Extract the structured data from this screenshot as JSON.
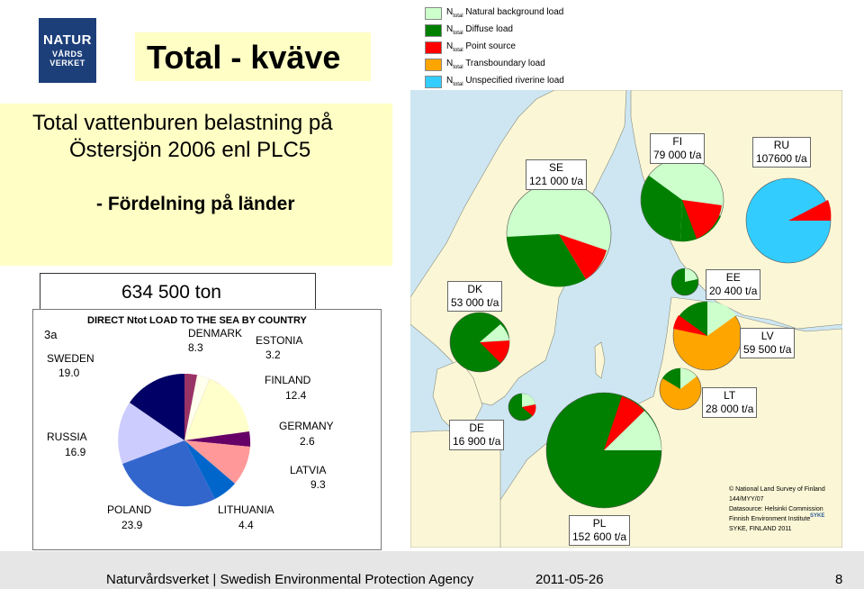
{
  "logo": {
    "line1": "NATUR",
    "line2": "VÅRDS",
    "line3": "VERKET"
  },
  "title": "Total - kväve",
  "legend": [
    {
      "prefix": "N",
      "sub": "total",
      "label": "Natural background load",
      "color": "#ccffcc"
    },
    {
      "prefix": "N",
      "sub": "total",
      "label": "Diffuse load",
      "color": "#008000"
    },
    {
      "prefix": "N",
      "sub": "total",
      "label": "Point source",
      "color": "#ff0000"
    },
    {
      "prefix": "N",
      "sub": "total",
      "label": "Transboundary load",
      "color": "#ffa500"
    },
    {
      "prefix": "N",
      "sub": "total",
      "label": "Unspecified riverine load",
      "color": "#33ccff"
    }
  ],
  "subtitle": {
    "line1": "Total vattenburen belastning på",
    "line2": "Östersjön 2006 enl PLC5",
    "line3": "- Fördelning på länder"
  },
  "total_value": "634 500 ton",
  "direct_chart": {
    "title": "DIRECT Ntot LOAD TO THE SEA BY COUNTRY",
    "panel_label": "3a",
    "slices": [
      {
        "country": "SWEDEN",
        "value": "19.0",
        "color": "#000066"
      },
      {
        "country": "DENMARK",
        "value": "8.3",
        "color": "#993366"
      },
      {
        "country": "ESTONIA",
        "value": "3.2",
        "color": "#ffffcc"
      },
      {
        "country": "FINLAND",
        "value": "12.4",
        "color": "#ffffcc"
      },
      {
        "country": "GERMANY",
        "value": "2.6",
        "color": "#660066"
      },
      {
        "country": "LATVIA",
        "value": "9.3",
        "color": "#ff9999"
      },
      {
        "country": "LITHUANIA",
        "value": "4.4",
        "color": "#0066cc"
      },
      {
        "country": "POLAND",
        "value": "23.9",
        "color": "#3366cc"
      },
      {
        "country": "RUSSIA",
        "value": "16.9",
        "color": "#ccccff"
      }
    ]
  },
  "map_labels": {
    "se": {
      "code": "SE",
      "load": "121 000 t/a"
    },
    "fi": {
      "code": "FI",
      "load": "79 000 t/a"
    },
    "ru": {
      "code": "RU",
      "load": "107600 t/a"
    },
    "dk": {
      "code": "DK",
      "load": "53 000 t/a"
    },
    "ee": {
      "code": "EE",
      "load": "20 400 t/a"
    },
    "lv": {
      "code": "LV",
      "load": "59 500 t/a"
    },
    "lt": {
      "code": "LT",
      "load": "28 000 t/a"
    },
    "de": {
      "code": "DE",
      "load": "16 900 t/a"
    },
    "pl": {
      "code": "PL",
      "load": "152 600 t/a"
    }
  },
  "map_copyright": {
    "line1": "© National Land Survey of Finland",
    "line2": "144/MYY/07",
    "line3": "Datasource: Helsinki Commission",
    "line4": "Finnish Environment Institute",
    "line5": "SYKE, FINLAND 2011",
    "badge": "SYKE"
  },
  "footer": {
    "text": "Naturvårdsverket | Swedish Environmental Protection Agency",
    "date": "2011-05-26",
    "page": "8"
  }
}
